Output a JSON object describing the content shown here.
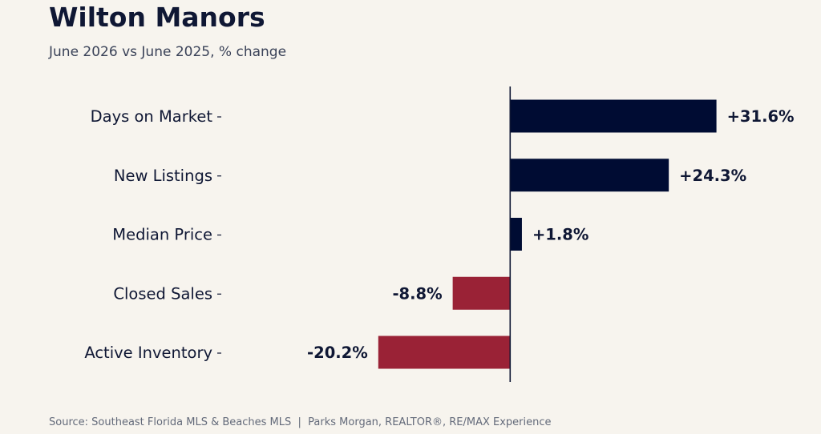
{
  "header": {
    "title": "Wilton Manors",
    "subtitle": "June 2026 vs June 2025, % change"
  },
  "footer": {
    "source": "Source: Southeast Florida MLS & Beaches MLS  |  Parks Morgan, REALTOR®, RE/MAX Experience"
  },
  "colors": {
    "positive": "#000c33",
    "negative": "#9a2236",
    "axis": "#0f1734",
    "text": "#0f1734",
    "background": "#f7f4ee"
  },
  "chart_data": {
    "type": "bar",
    "orientation": "horizontal",
    "title": "Wilton Manors",
    "subtitle": "June 2026 vs June 2025, % change",
    "categories": [
      "Days on Market",
      "New Listings",
      "Median Price",
      "Closed Sales",
      "Active Inventory"
    ],
    "values": [
      31.6,
      24.3,
      1.8,
      -8.8,
      -20.2
    ],
    "value_labels": [
      "+31.6%",
      "+24.3%",
      "+1.8%",
      "-8.8%",
      "-20.2%"
    ],
    "xlim": [
      -44,
      40
    ],
    "grid": false,
    "legend": "none"
  }
}
